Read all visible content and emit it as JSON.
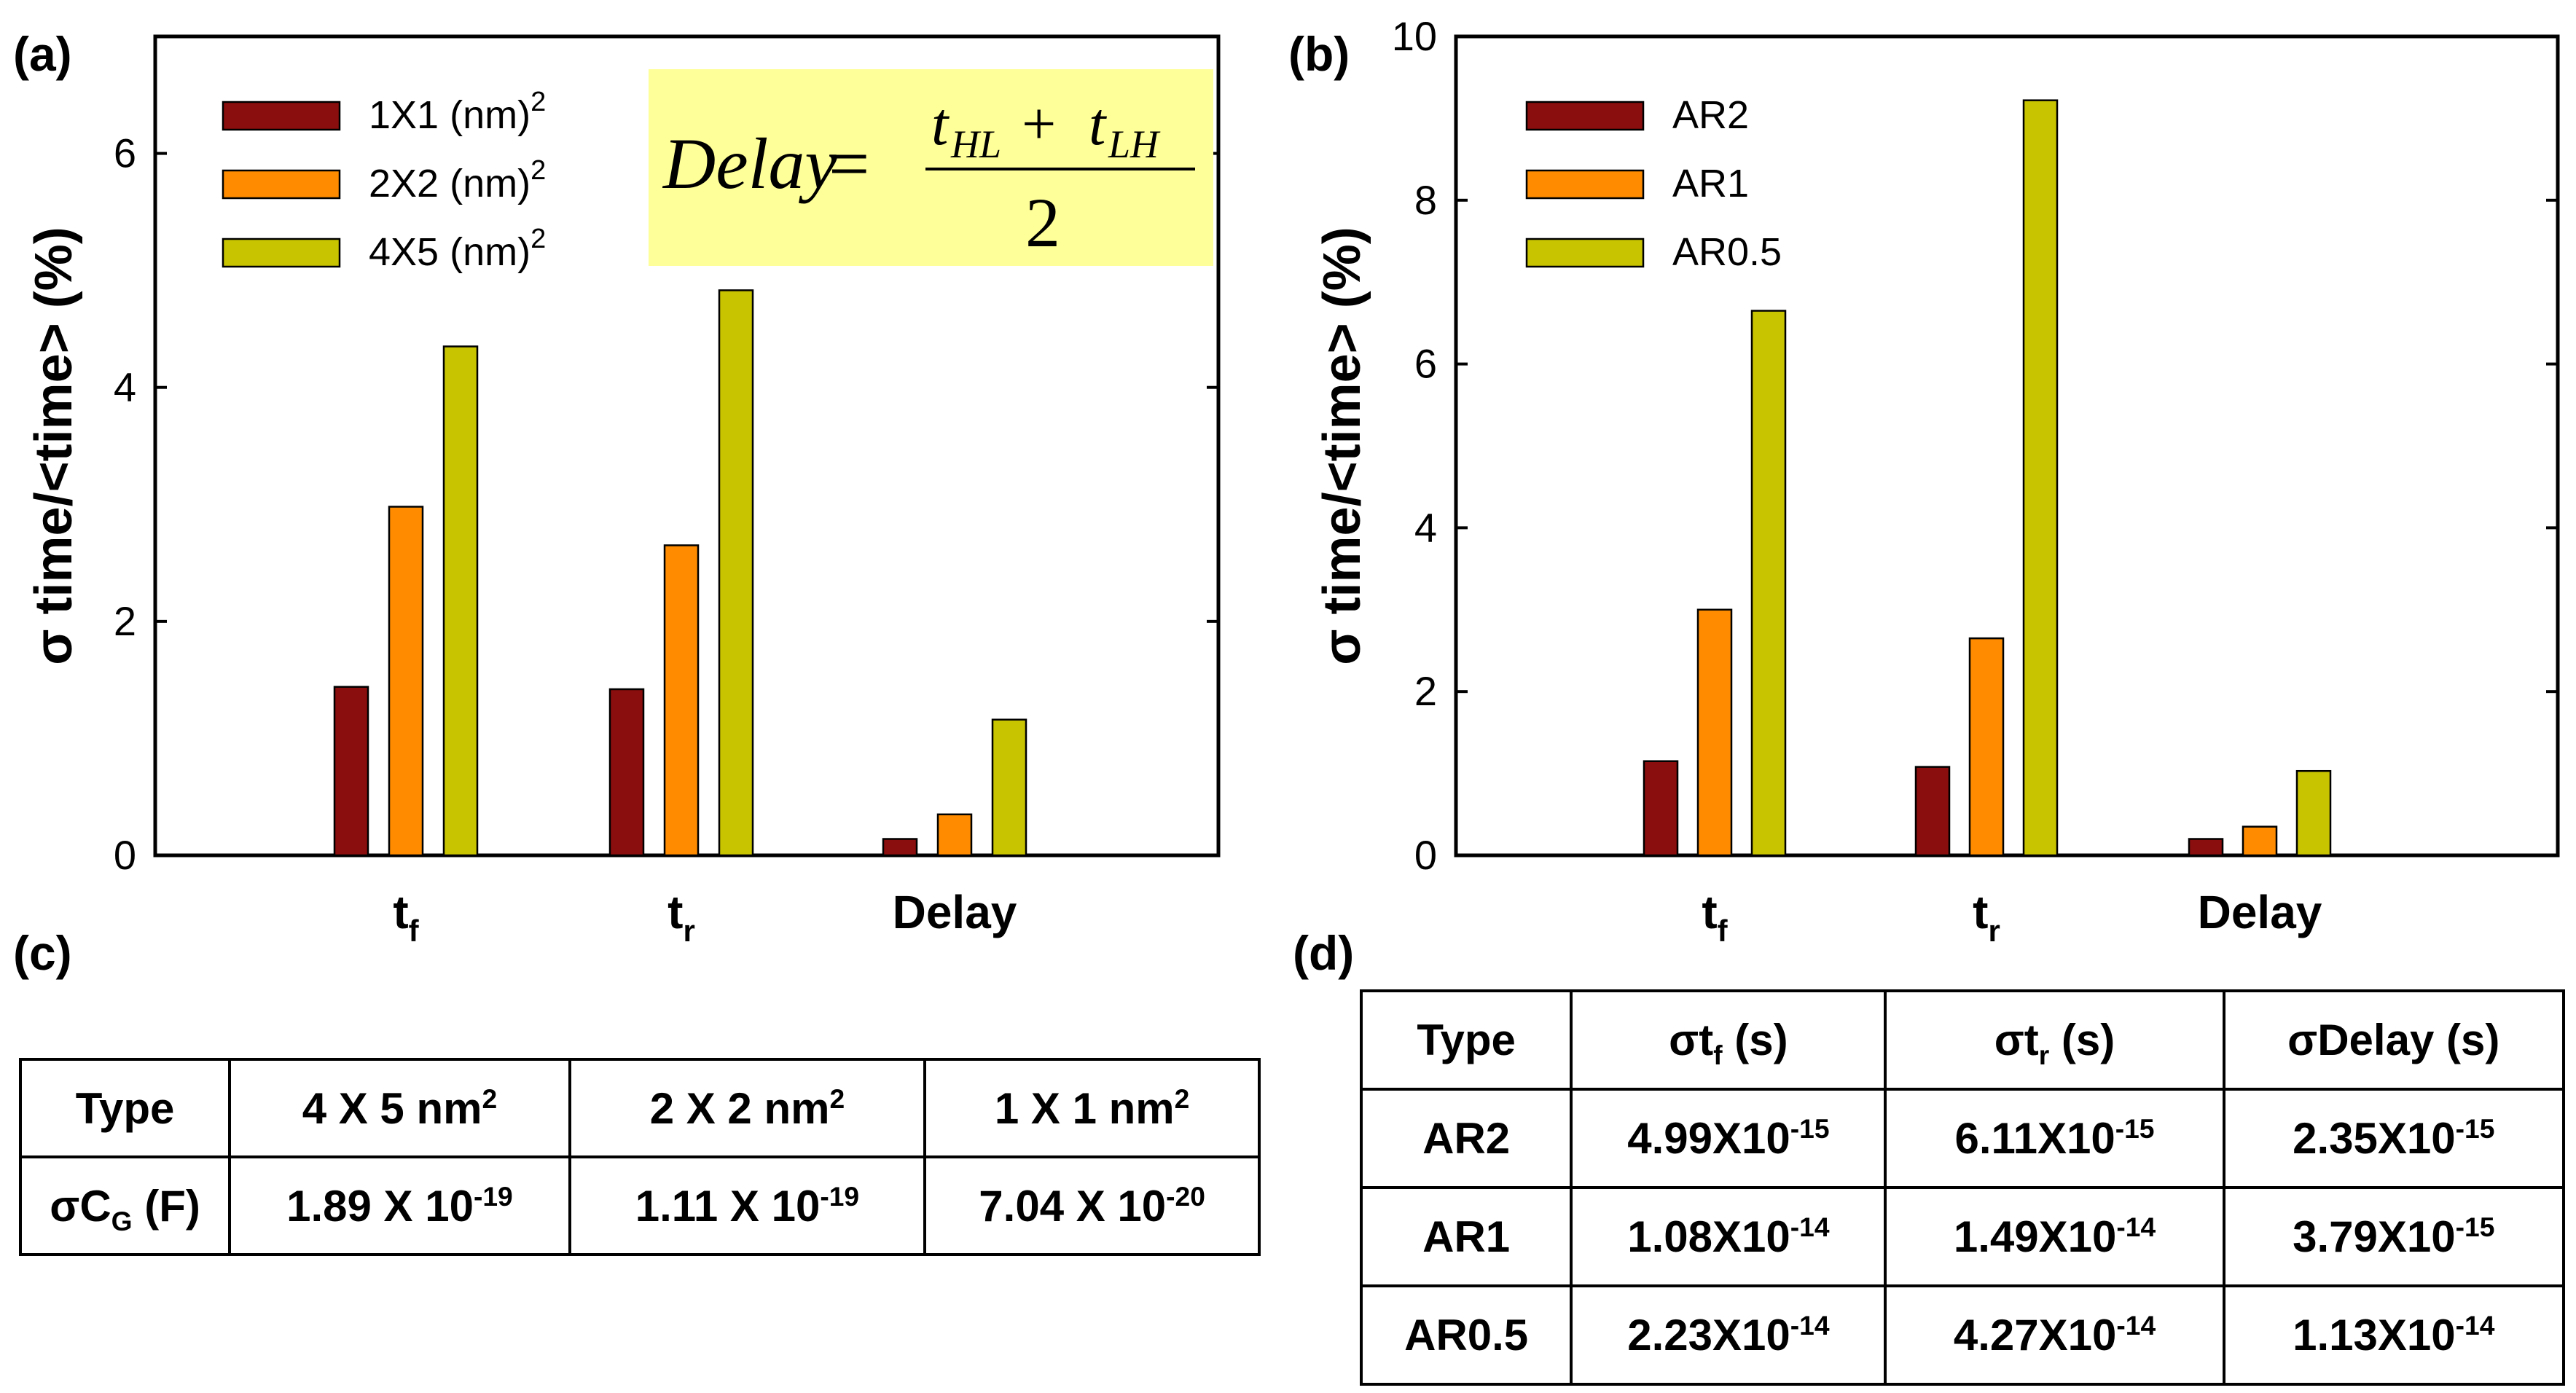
{
  "panels": {
    "a": "(a)",
    "b": "(b)",
    "c": "(c)",
    "d": "(d)"
  },
  "formula": {
    "lhs": "Delay",
    "equals": "=",
    "numerator_t1": "t",
    "numerator_t1_sub": "HL",
    "plus": "+",
    "numerator_t2": "t",
    "numerator_t2_sub": "LH",
    "denominator": "2",
    "box_color": "#ffff99"
  },
  "chart_data": [
    {
      "panel": "(a)",
      "type": "bar",
      "title": "",
      "xlabel": "",
      "ylabel": "σ time/<time> (%)",
      "ylim": [
        0,
        7
      ],
      "yticks": [
        0,
        2,
        4,
        6
      ],
      "grid": false,
      "legend_position": "top-left",
      "categories": [
        {
          "main": "t",
          "sub": "f"
        },
        {
          "main": "t",
          "sub": "r"
        },
        {
          "main": "Delay",
          "sub": ""
        }
      ],
      "series": [
        {
          "name": "1X1 (nm)",
          "sup": "2",
          "color": "#8b0e0e",
          "values": [
            1.44,
            1.42,
            0.14
          ]
        },
        {
          "name": "2X2 (nm)",
          "sup": "2",
          "color": "#ff8c00",
          "values": [
            2.98,
            2.65,
            0.35
          ]
        },
        {
          "name": "4X5 (nm)",
          "sup": "2",
          "color": "#c9c400",
          "values": [
            4.35,
            4.83,
            1.16
          ]
        }
      ]
    },
    {
      "panel": "(b)",
      "type": "bar",
      "title": "",
      "xlabel": "",
      "ylabel": "σ time/<time> (%)",
      "ylim": [
        0,
        10
      ],
      "yticks": [
        0,
        2,
        4,
        6,
        8,
        10
      ],
      "grid": false,
      "legend_position": "top-left",
      "categories": [
        {
          "main": "t",
          "sub": "f"
        },
        {
          "main": "t",
          "sub": "r"
        },
        {
          "main": "Delay",
          "sub": ""
        }
      ],
      "series": [
        {
          "name": "AR2",
          "sup": "",
          "color": "#8b0e0e",
          "values": [
            1.15,
            1.08,
            0.2
          ]
        },
        {
          "name": "AR1",
          "sup": "",
          "color": "#ff8c00",
          "values": [
            3.0,
            2.65,
            0.35
          ]
        },
        {
          "name": "AR0.5",
          "sup": "",
          "color": "#c9c400",
          "values": [
            6.65,
            9.22,
            1.03
          ]
        }
      ]
    }
  ],
  "table_c": {
    "header": {
      "type": "Type",
      "col1": {
        "text": "4 X 5 nm",
        "sup": "2"
      },
      "col2": {
        "text": "2 X 2 nm",
        "sup": "2"
      },
      "col3": {
        "text": "1 X 1 nm",
        "sup": "2"
      }
    },
    "row": {
      "label": {
        "pre": "σC",
        "sub": "G",
        "post": " (F)"
      },
      "v1": {
        "base": "1.89 X 10",
        "exp": "-19"
      },
      "v2": {
        "base": "1.11 X 10",
        "exp": "-19"
      },
      "v3": {
        "base": "7.04 X 10",
        "exp": "-20"
      }
    }
  },
  "table_d": {
    "header": {
      "type": "Type",
      "col1": {
        "pre": "σt",
        "sub": "f",
        "post": " (s)"
      },
      "col2": {
        "pre": "σt",
        "sub": "r",
        "post": " (s)"
      },
      "col3": {
        "text": "σDelay (s)"
      }
    },
    "rows": [
      {
        "type": "AR2",
        "tf": {
          "base": "4.99X10",
          "exp": "-15"
        },
        "tr": {
          "base": "6.11X10",
          "exp": "-15"
        },
        "delay": {
          "base": "2.35X10",
          "exp": "-15"
        }
      },
      {
        "type": "AR1",
        "tf": {
          "base": "1.08X10",
          "exp": "-14"
        },
        "tr": {
          "base": "1.49X10",
          "exp": "-14"
        },
        "delay": {
          "base": "3.79X10",
          "exp": "-15"
        }
      },
      {
        "type": "AR0.5",
        "tf": {
          "base": "2.23X10",
          "exp": "-14"
        },
        "tr": {
          "base": "4.27X10",
          "exp": "-14"
        },
        "delay": {
          "base": "1.13X10",
          "exp": "-14"
        }
      }
    ]
  }
}
